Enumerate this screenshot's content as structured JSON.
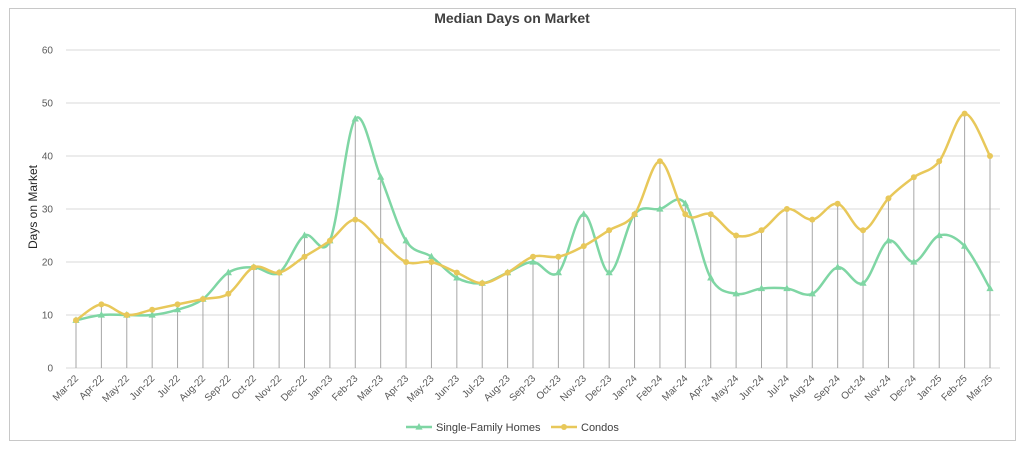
{
  "chart_data": {
    "type": "line",
    "title": "Median Days on Market",
    "xlabel": "",
    "ylabel": "Days on Market",
    "ylim": [
      0,
      60
    ],
    "yticks": [
      0,
      10,
      20,
      30,
      40,
      50,
      60
    ],
    "grid": true,
    "legend_position": "bottom",
    "categories": [
      "Mar-22",
      "Apr-22",
      "May-22",
      "Jun-22",
      "Jul-22",
      "Aug-22",
      "Sep-22",
      "Oct-22",
      "Nov-22",
      "Dec-22",
      "Jan-23",
      "Feb-23",
      "Mar-23",
      "Apr-23",
      "May-23",
      "Jun-23",
      "Jul-23",
      "Aug-23",
      "Sep-23",
      "Oct-23",
      "Nov-23",
      "Dec-23",
      "Jan-24",
      "Feb-24",
      "Mar-24",
      "Apr-24",
      "May-24",
      "Jun-24",
      "Jul-24",
      "Aug-24",
      "Sep-24",
      "Oct-24",
      "Nov-24",
      "Dec-24",
      "Jan-25",
      "Feb-25",
      "Mar-25"
    ],
    "series": [
      {
        "name": "Single-Family Homes",
        "color": "#7fd6a4",
        "marker": "triangle",
        "values": [
          9,
          10,
          10,
          10,
          11,
          13,
          18,
          19,
          18,
          25,
          24,
          47,
          36,
          24,
          21,
          17,
          16,
          18,
          20,
          18,
          29,
          18,
          29,
          30,
          31,
          17,
          14,
          15,
          15,
          14,
          19,
          16,
          24,
          20,
          25,
          23,
          15
        ]
      },
      {
        "name": "Condos",
        "color": "#e8c85a",
        "marker": "circle",
        "values": [
          9,
          12,
          10,
          11,
          12,
          13,
          14,
          19,
          18,
          21,
          24,
          28,
          24,
          20,
          20,
          18,
          16,
          18,
          21,
          21,
          23,
          26,
          29,
          39,
          29,
          29,
          25,
          26,
          30,
          28,
          31,
          26,
          32,
          36,
          39,
          48,
          40
        ]
      }
    ]
  }
}
